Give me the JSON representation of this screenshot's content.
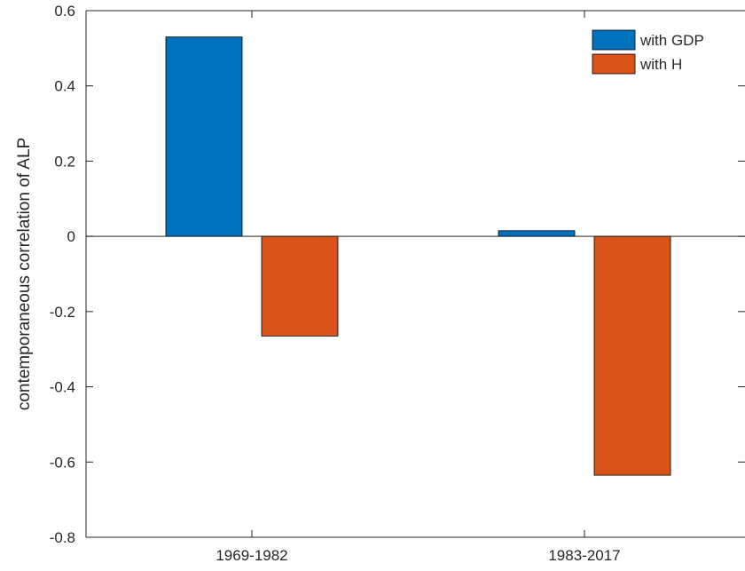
{
  "chart_data": {
    "type": "bar",
    "categories": [
      "1969-1982",
      "1983-2017"
    ],
    "series": [
      {
        "name": "with GDP",
        "values": [
          0.53,
          0.015
        ],
        "color": "#0072BD"
      },
      {
        "name": "with H",
        "values": [
          -0.265,
          -0.635
        ],
        "color": "#D95319"
      }
    ],
    "ylabel": "contemporaneous correlation of ALP",
    "xlabel": "",
    "ylim": [
      -0.8,
      0.6
    ],
    "yticks": [
      -0.8,
      -0.6,
      -0.4,
      -0.2,
      0,
      0.2,
      0.4,
      0.6
    ],
    "ytick_labels": [
      "-0.8",
      "-0.6",
      "-0.4",
      "-0.2",
      "0",
      "0.2",
      "0.4",
      "0.6"
    ],
    "grid": false,
    "legend_position": "top-right"
  }
}
